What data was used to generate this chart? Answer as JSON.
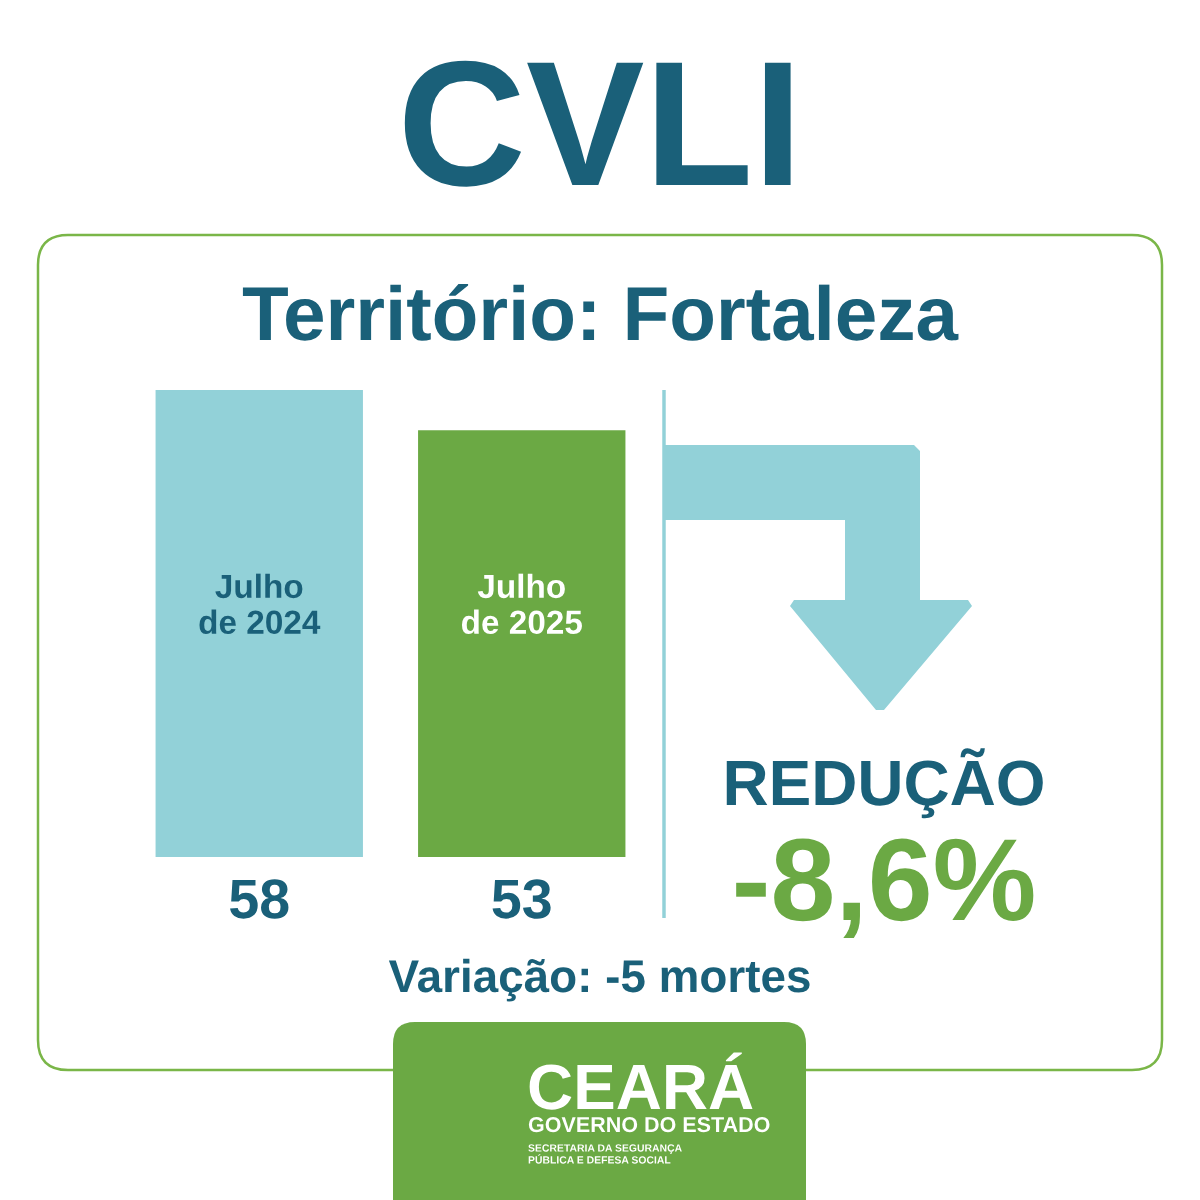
{
  "chart_data": {
    "type": "bar",
    "title": "CVLI",
    "subtitle": "Território: Fortaleza",
    "categories": [
      "Julho\nde 2024",
      "Julho\nde 2025"
    ],
    "values": [
      58,
      53
    ],
    "colors": [
      "#92d1d8",
      "#6ba944"
    ],
    "data_labels": true,
    "annotations": [
      "REDUÇÃO",
      "-8,6%",
      "Variação: -5 mortes",
      "CEARÁ",
      "GOVERNO DO ESTADO",
      "SECRETARIA DA SEGURANÇA\nPÚBLICA E DEFESA SOCIAL"
    ]
  }
}
